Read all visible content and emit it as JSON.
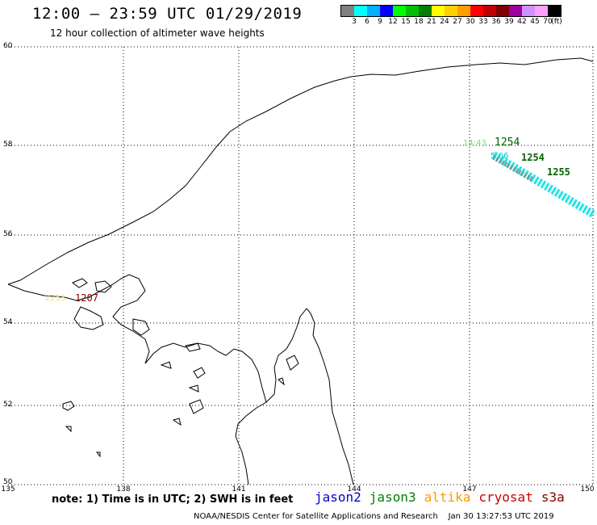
{
  "header": {
    "title": "12:00 — 23:59 UTC 01/29/2019",
    "subtitle": "12 hour collection of altimeter wave heights"
  },
  "legend": {
    "colors": [
      "#808080",
      "#00ffff",
      "#00b0ff",
      "#0000ff",
      "#00ff00",
      "#00c000",
      "#008000",
      "#ffff00",
      "#ffd000",
      "#ffa000",
      "#ff0000",
      "#c00000",
      "#800000",
      "#a000a0",
      "#d090ff",
      "#ffa0ff",
      "#000000"
    ],
    "ticks": [
      "3",
      "6",
      "9",
      "12",
      "15",
      "18",
      "21",
      "24",
      "27",
      "30",
      "33",
      "36",
      "39",
      "42",
      "45",
      "70"
    ],
    "unit": "(ft)"
  },
  "axes": {
    "x_labels": [
      "135",
      "138",
      "141",
      "144",
      "147",
      "150"
    ],
    "y_labels": [
      "60",
      "58",
      "56",
      "54",
      "52",
      "50"
    ]
  },
  "annotations": {
    "pass_1443": "14:43",
    "pass_1254": "1254",
    "pass_1207": "1207",
    "pass_left_faint": "2253",
    "pass_cyan": "5:06",
    "pass_1254b": "1254",
    "pass_1255": "1255"
  },
  "note": "note: 1) Time is in UTC; 2) SWH is in feet",
  "satellites": [
    {
      "name": "jason2",
      "color": "#0000cc"
    },
    {
      "name": "jason3",
      "color": "#008000"
    },
    {
      "name": "altika",
      "color": "#ff9900"
    },
    {
      "name": "cryosat",
      "color": "#cc0000"
    },
    {
      "name": "s3a",
      "color": "#800000"
    }
  ],
  "footer": {
    "credit": "NOAA/NESDIS Center for Satellite Applications and Research",
    "timestamp": "Jan 30 13:27:53 UTC 2019"
  }
}
